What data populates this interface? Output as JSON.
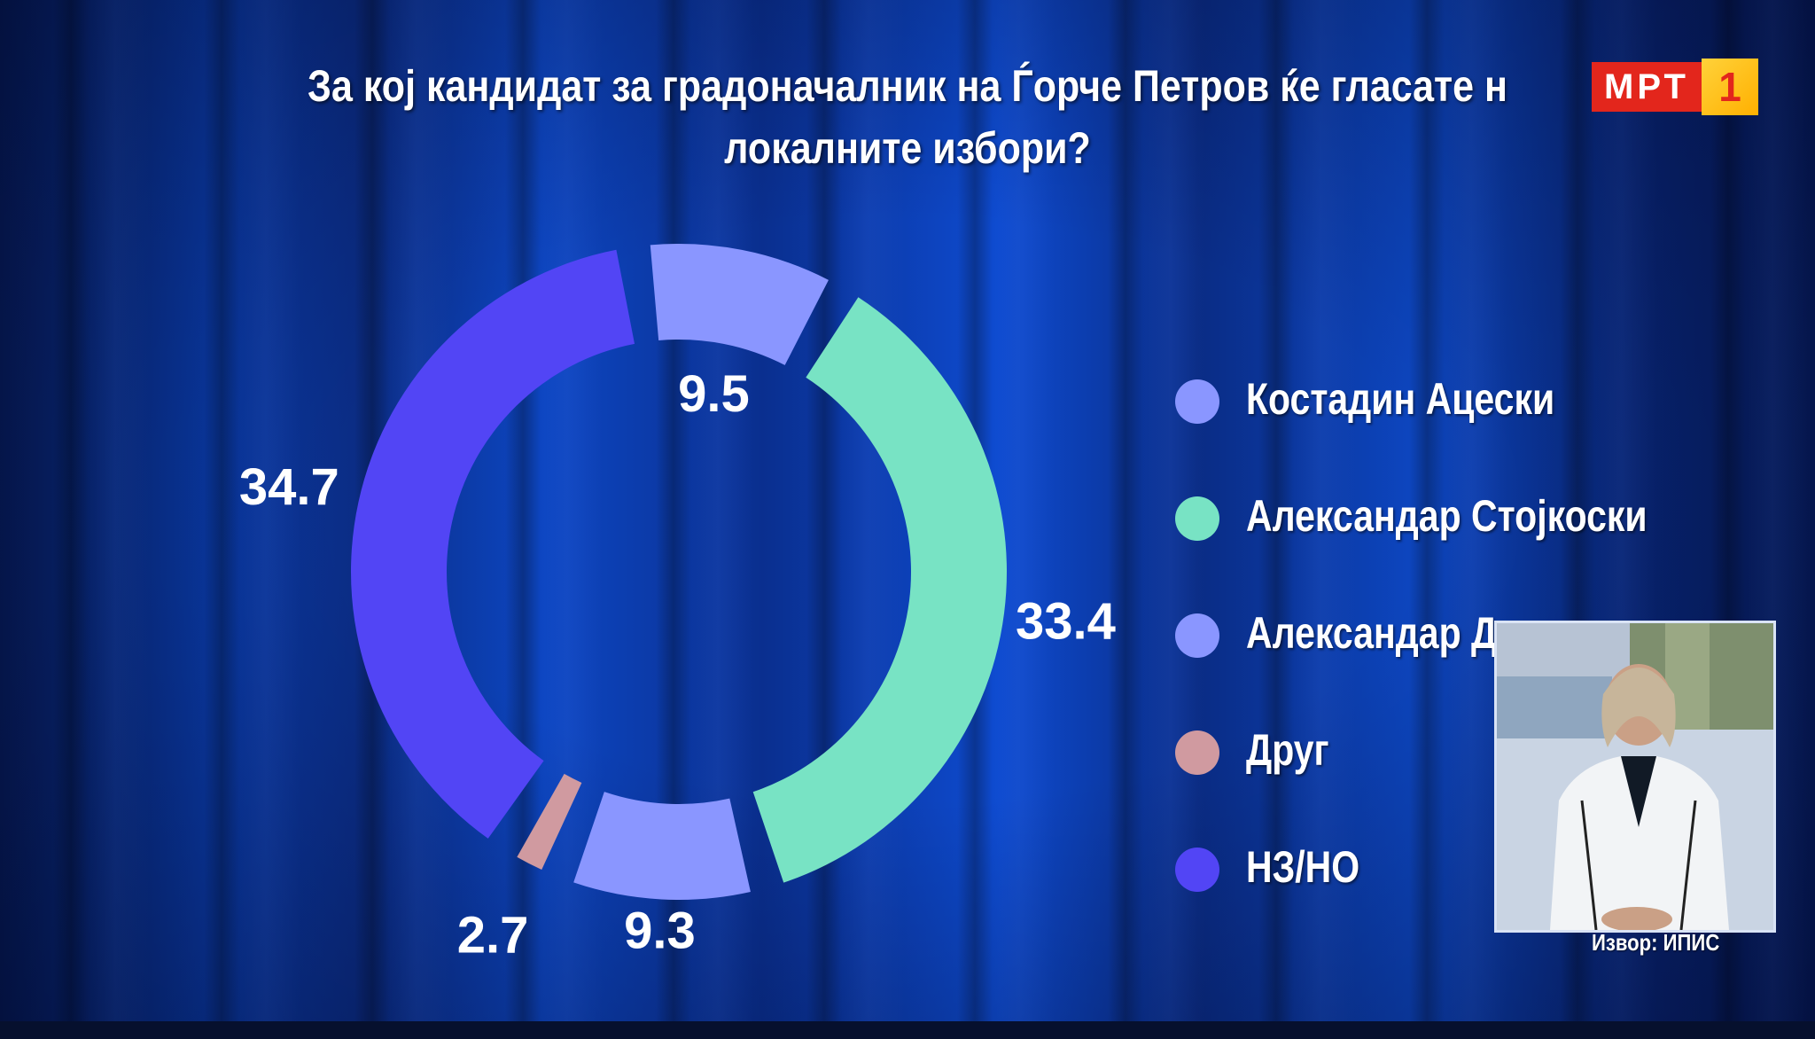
{
  "header": {
    "title_line1": "За кој кандидат за градоначалник на Ѓорче Петров ќе гласате н",
    "title_line2": "локалните избори?"
  },
  "broadcaster": {
    "logo_text": "МРТ",
    "logo_number": "1"
  },
  "chart_data": {
    "type": "pie",
    "title": "За кој кандидат за градоначалник на Ѓорче Петров ќе гласате н локалните избори?",
    "legend_position": "right",
    "slices": [
      {
        "label": "Костадин Ацески",
        "value": 9.5,
        "display": "9.5",
        "color": "#8a96ff"
      },
      {
        "label": "Александар Стојкоски",
        "value": 33.4,
        "display": "33.4",
        "color": "#78e3c4"
      },
      {
        "label": "Александар Д",
        "value": 9.3,
        "display": "9.3",
        "color": "#8a96ff"
      },
      {
        "label": "Друг",
        "value": 2.7,
        "display": "2.7",
        "color": "#d09aa0"
      },
      {
        "label": "НЗ/НО",
        "value": 34.7,
        "display": "34.7",
        "color": "#5245f5"
      }
    ]
  },
  "legend": {
    "items": [
      {
        "label": "Костадин Ацески",
        "color": "#8a96ff"
      },
      {
        "label": "Александар Стојкоски",
        "color": "#78e3c4"
      },
      {
        "label": "Александар Д",
        "color": "#8a96ff"
      },
      {
        "label": "Друг",
        "color": "#d09aa0"
      },
      {
        "label": "НЗ/НО",
        "color": "#5245f5"
      }
    ]
  },
  "footer": {
    "source": "Извор: ИПИС"
  }
}
